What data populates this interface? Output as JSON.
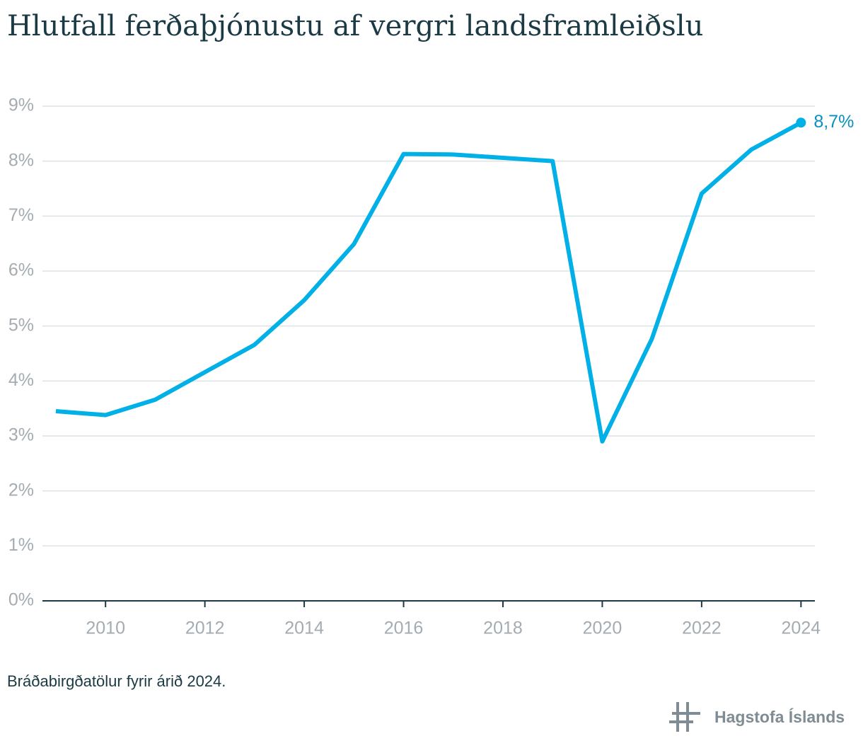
{
  "chart_data": {
    "type": "line",
    "title": "Hlutfall ferðaþjónustu af vergri landsframleiðslu",
    "x": [
      2009,
      2010,
      2011,
      2012,
      2013,
      2014,
      2015,
      2016,
      2017,
      2018,
      2019,
      2020,
      2021,
      2022,
      2023,
      2024
    ],
    "series": [
      {
        "color": "#00b0e6",
        "values": [
          3.45,
          3.38,
          3.66,
          4.16,
          4.66,
          5.47,
          6.49,
          8.13,
          8.12,
          8.06,
          8.0,
          2.9,
          4.77,
          7.41,
          8.21,
          8.7
        ],
        "value_labels": [
          null,
          null,
          null,
          null,
          null,
          null,
          null,
          null,
          null,
          null,
          null,
          null,
          null,
          null,
          null,
          "8,7%"
        ]
      }
    ],
    "xlim": [
      2008.73,
      2024.28
    ],
    "xticks": [
      2010,
      2012,
      2014,
      2016,
      2018,
      2020,
      2022,
      2024
    ],
    "ylim": [
      0,
      9
    ],
    "yticks": [
      {
        "value": 0,
        "label": "0%"
      },
      {
        "value": 1,
        "label": "1%"
      },
      {
        "value": 2,
        "label": "2%"
      },
      {
        "value": 3,
        "label": "3%"
      },
      {
        "value": 4,
        "label": "4%"
      },
      {
        "value": 5,
        "label": "5%"
      },
      {
        "value": 6,
        "label": "6%"
      },
      {
        "value": 7,
        "label": "7%"
      },
      {
        "value": 8,
        "label": "8%"
      },
      {
        "value": 9,
        "label": "9%"
      }
    ],
    "grid": true,
    "note": "Bráðabirgðatölur fyrir árið 2024.",
    "source": "Hagstofa Íslands"
  }
}
